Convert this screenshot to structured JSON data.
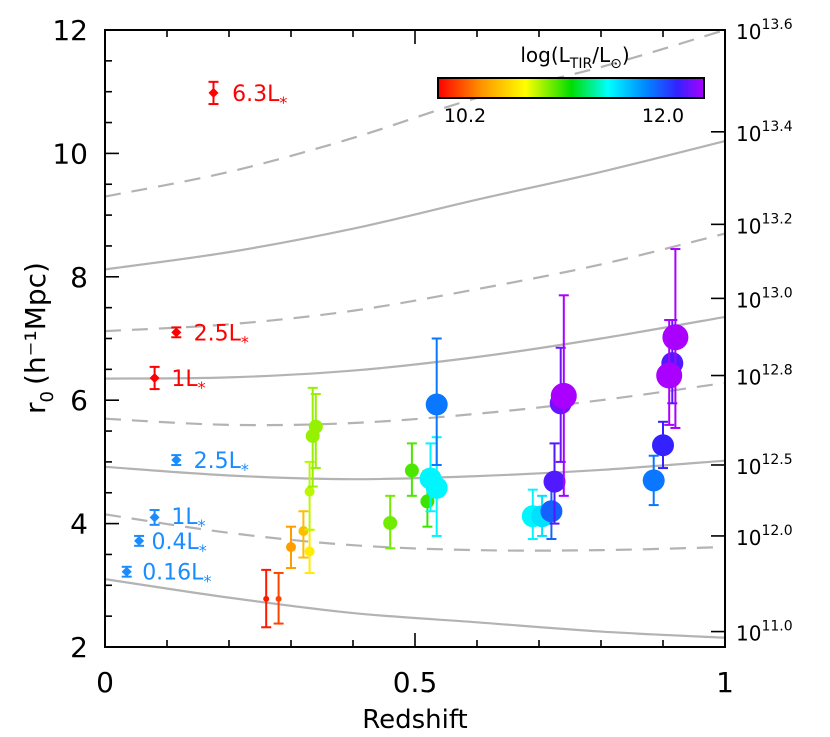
{
  "chart_data": {
    "type": "scatter",
    "xlabel": "Redshift",
    "ylabel": "r",
    "ylabel_sub": "0",
    "ylabel_units": "(h⁻¹Mpc)",
    "xlim": [
      0,
      1
    ],
    "ylim": [
      2,
      12
    ],
    "x_ticks": [
      "0",
      "0.5",
      "1"
    ],
    "y_ticks": [
      "2",
      "4",
      "6",
      "8",
      "10",
      "12"
    ],
    "right_axis_labels": [
      {
        "mant": "10",
        "exp": "11.0",
        "at": 2.25
      },
      {
        "mant": "10",
        "exp": "12.0",
        "at": 3.8
      },
      {
        "mant": "10",
        "exp": "12.5",
        "at": 4.95
      },
      {
        "mant": "10",
        "exp": "12.8",
        "at": 6.4
      },
      {
        "mant": "10",
        "exp": "13.0",
        "at": 7.65
      },
      {
        "mant": "10",
        "exp": "13.2",
        "at": 8.85
      },
      {
        "mant": "10",
        "exp": "13.4",
        "at": 10.35
      },
      {
        "mant": "10",
        "exp": "13.6",
        "at": 12
      }
    ],
    "colorbar": {
      "title": "log(L_TIR/L_⊙)",
      "min_label": "10.2",
      "max_label": "12.0",
      "min": 10.2,
      "max": 12.0
    },
    "halo_curves": [
      {
        "style": "solid",
        "points": [
          [
            0,
            3.1
          ],
          [
            0.2,
            2.8
          ],
          [
            0.4,
            2.55
          ],
          [
            0.6,
            2.4
          ],
          [
            0.8,
            2.25
          ],
          [
            1,
            2.15
          ]
        ]
      },
      {
        "style": "dashed",
        "points": [
          [
            0,
            4.15
          ],
          [
            0.2,
            3.85
          ],
          [
            0.4,
            3.65
          ],
          [
            0.6,
            3.57
          ],
          [
            0.8,
            3.57
          ],
          [
            1,
            3.62
          ]
        ]
      },
      {
        "style": "solid",
        "points": [
          [
            0,
            4.92
          ],
          [
            0.2,
            4.78
          ],
          [
            0.4,
            4.72
          ],
          [
            0.6,
            4.77
          ],
          [
            0.8,
            4.87
          ],
          [
            1,
            5.02
          ]
        ]
      },
      {
        "style": "dashed",
        "points": [
          [
            0,
            5.7
          ],
          [
            0.2,
            5.6
          ],
          [
            0.4,
            5.63
          ],
          [
            0.6,
            5.78
          ],
          [
            0.8,
            6.0
          ],
          [
            1,
            6.28
          ]
        ]
      },
      {
        "style": "solid",
        "points": [
          [
            0,
            6.35
          ],
          [
            0.2,
            6.37
          ],
          [
            0.4,
            6.48
          ],
          [
            0.6,
            6.7
          ],
          [
            0.8,
            7.0
          ],
          [
            1,
            7.35
          ]
        ]
      },
      {
        "style": "dashed",
        "points": [
          [
            0,
            7.12
          ],
          [
            0.2,
            7.23
          ],
          [
            0.4,
            7.45
          ],
          [
            0.6,
            7.8
          ],
          [
            0.8,
            8.2
          ],
          [
            1,
            8.7
          ]
        ]
      },
      {
        "style": "solid",
        "points": [
          [
            0,
            8.12
          ],
          [
            0.2,
            8.4
          ],
          [
            0.4,
            8.78
          ],
          [
            0.6,
            9.25
          ],
          [
            0.8,
            9.7
          ],
          [
            1,
            10.2
          ]
        ]
      },
      {
        "style": "dashed",
        "points": [
          [
            0,
            9.3
          ],
          [
            0.2,
            9.7
          ],
          [
            0.4,
            10.25
          ],
          [
            0.6,
            10.9
          ],
          [
            0.8,
            11.4
          ],
          [
            1,
            12.0
          ]
        ]
      }
    ],
    "annotations": [
      {
        "text": "6.3L",
        "x": 0.205,
        "y": 10.98,
        "color": "#ff0000"
      },
      {
        "text": "2.5L",
        "x": 0.143,
        "y": 7.1,
        "color": "#ff0000"
      },
      {
        "text": "1L",
        "x": 0.107,
        "y": 6.36,
        "color": "#ff0000"
      },
      {
        "text": "2.5L",
        "x": 0.143,
        "y": 5.03,
        "color": "#1a8cff"
      },
      {
        "text": "1L",
        "x": 0.107,
        "y": 4.12,
        "color": "#1a8cff"
      },
      {
        "text": "0.4L",
        "x": 0.075,
        "y": 3.72,
        "color": "#1a8cff"
      },
      {
        "text": "0.16L",
        "x": 0.06,
        "y": 3.22,
        "color": "#1a8cff"
      }
    ],
    "annotation_subscript": "*",
    "reference_points": [
      {
        "x": 0.175,
        "y": 10.98,
        "err": 0.18,
        "color": "#ff0000",
        "marker": "diamond"
      },
      {
        "x": 0.115,
        "y": 7.1,
        "err": 0.08,
        "color": "#ff0000",
        "marker": "diamond"
      },
      {
        "x": 0.08,
        "y": 6.36,
        "err": 0.18,
        "color": "#ff0000",
        "marker": "diamond"
      },
      {
        "x": 0.115,
        "y": 5.03,
        "err": 0.08,
        "color": "#1a8cff",
        "marker": "diamond"
      },
      {
        "x": 0.08,
        "y": 4.1,
        "err": 0.12,
        "color": "#1a8cff",
        "marker": "diamond"
      },
      {
        "x": 0.055,
        "y": 3.72,
        "err": 0.08,
        "color": "#1a8cff",
        "marker": "diamond"
      },
      {
        "x": 0.035,
        "y": 3.22,
        "err": 0.08,
        "color": "#1a8cff",
        "marker": "diamond"
      }
    ],
    "points": [
      {
        "x": 0.26,
        "y": 2.78,
        "lo": 2.32,
        "hi": 3.25,
        "logL": 10.25,
        "size": "xs"
      },
      {
        "x": 0.28,
        "y": 2.78,
        "lo": 2.38,
        "hi": 3.2,
        "logL": 10.35,
        "size": "xs"
      },
      {
        "x": 0.3,
        "y": 3.62,
        "lo": 3.28,
        "hi": 3.95,
        "logL": 10.55,
        "size": "s"
      },
      {
        "x": 0.32,
        "y": 3.88,
        "lo": 3.45,
        "hi": 4.2,
        "logL": 10.65,
        "size": "s"
      },
      {
        "x": 0.33,
        "y": 3.55,
        "lo": 3.2,
        "hi": 3.9,
        "logL": 10.8,
        "size": "s"
      },
      {
        "x": 0.33,
        "y": 4.52,
        "lo": 3.9,
        "hi": 5.0,
        "logL": 10.95,
        "size": "s"
      },
      {
        "x": 0.335,
        "y": 5.42,
        "lo": 4.6,
        "hi": 6.2,
        "logL": 11.0,
        "size": "m"
      },
      {
        "x": 0.34,
        "y": 5.57,
        "lo": 4.9,
        "hi": 6.1,
        "logL": 11.0,
        "size": "m"
      },
      {
        "x": 0.46,
        "y": 4.01,
        "lo": 3.6,
        "hi": 4.45,
        "logL": 11.05,
        "size": "m"
      },
      {
        "x": 0.495,
        "y": 4.86,
        "lo": 4.45,
        "hi": 5.3,
        "logL": 11.1,
        "size": "m"
      },
      {
        "x": 0.52,
        "y": 4.36,
        "lo": 3.95,
        "hi": 4.85,
        "logL": 11.12,
        "size": "m"
      },
      {
        "x": 0.525,
        "y": 4.73,
        "lo": 4.2,
        "hi": 5.3,
        "logL": 11.5,
        "size": "l"
      },
      {
        "x": 0.535,
        "y": 4.58,
        "lo": 3.8,
        "hi": 5.4,
        "logL": 11.5,
        "size": "l"
      },
      {
        "x": 0.535,
        "y": 5.93,
        "lo": 4.95,
        "hi": 7.0,
        "logL": 11.8,
        "size": "l"
      },
      {
        "x": 0.69,
        "y": 4.12,
        "lo": 3.75,
        "hi": 4.55,
        "logL": 11.5,
        "size": "l"
      },
      {
        "x": 0.705,
        "y": 4.12,
        "lo": 3.8,
        "hi": 4.45,
        "logL": 11.55,
        "size": "l"
      },
      {
        "x": 0.72,
        "y": 4.2,
        "lo": 3.75,
        "hi": 4.6,
        "logL": 11.85,
        "size": "l"
      },
      {
        "x": 0.725,
        "y": 4.68,
        "lo": 4.0,
        "hi": 5.3,
        "logL": 12.05,
        "size": "l"
      },
      {
        "x": 0.735,
        "y": 5.95,
        "lo": 5.0,
        "hi": 6.85,
        "logL": 12.1,
        "size": "l"
      },
      {
        "x": 0.74,
        "y": 6.07,
        "lo": 4.45,
        "hi": 7.7,
        "logL": 12.3,
        "size": "xl"
      },
      {
        "x": 0.885,
        "y": 4.7,
        "lo": 4.3,
        "hi": 5.1,
        "logL": 11.8,
        "size": "l"
      },
      {
        "x": 0.9,
        "y": 5.27,
        "lo": 4.9,
        "hi": 5.65,
        "logL": 12.0,
        "size": "l"
      },
      {
        "x": 0.915,
        "y": 6.6,
        "lo": 5.95,
        "hi": 7.3,
        "logL": 12.05,
        "size": "l"
      },
      {
        "x": 0.91,
        "y": 6.4,
        "lo": 5.6,
        "hi": 7.3,
        "logL": 12.3,
        "size": "xl"
      },
      {
        "x": 0.92,
        "y": 7.02,
        "lo": 5.55,
        "hi": 8.45,
        "logL": 12.45,
        "size": "xl"
      }
    ]
  }
}
